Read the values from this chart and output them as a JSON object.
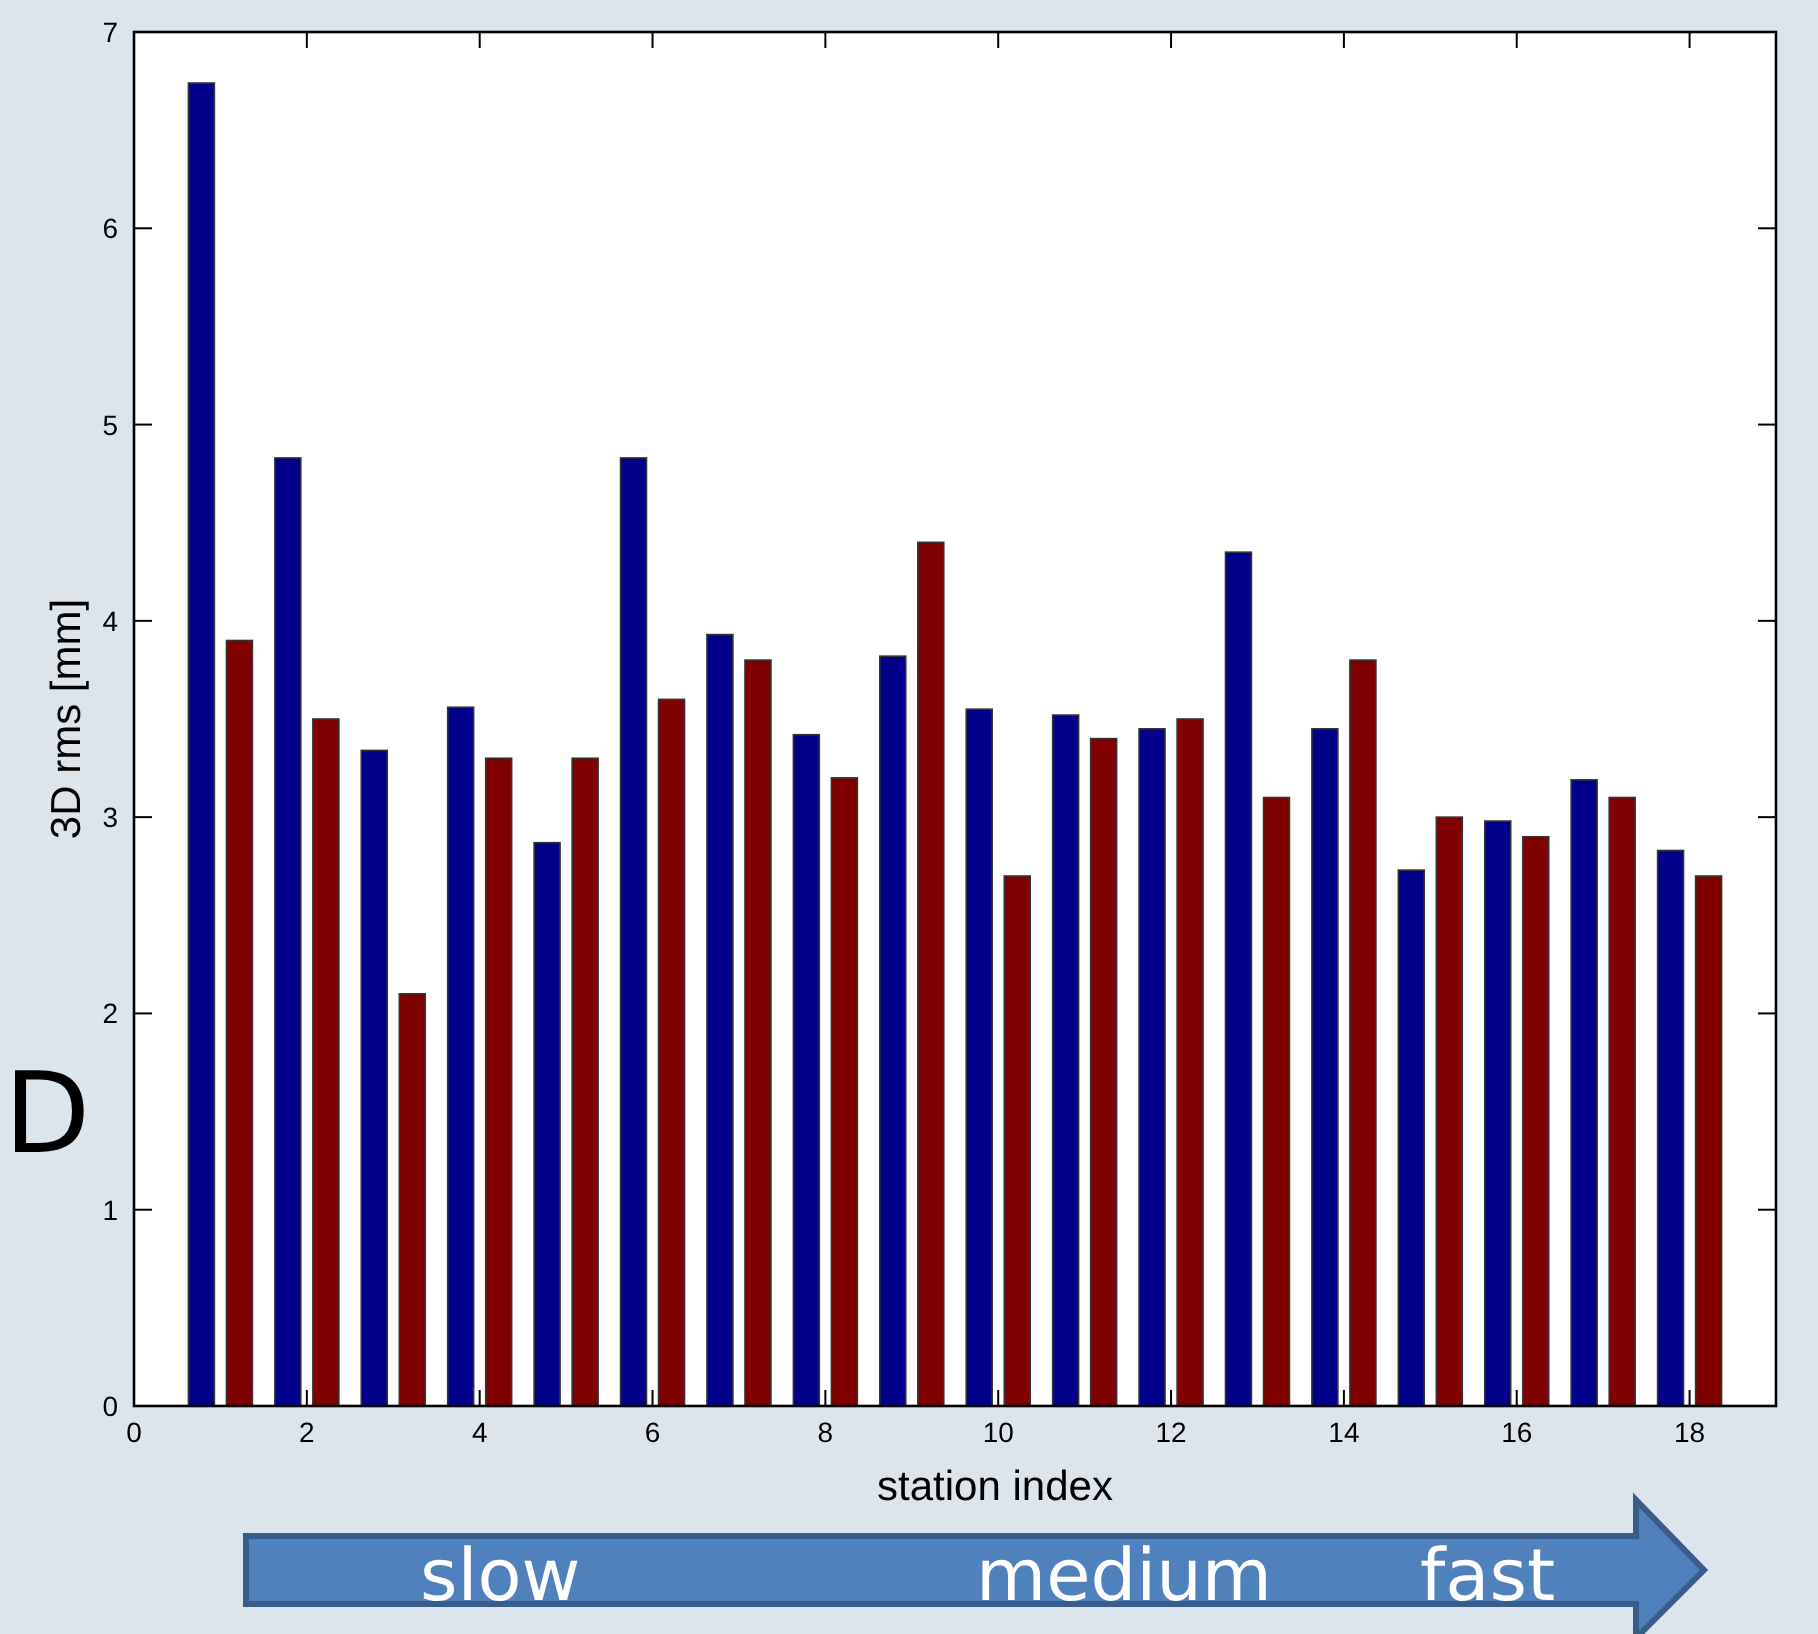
{
  "chart_data": {
    "type": "bar",
    "xlabel": "station index",
    "ylabel": "3D rms [mm]",
    "x": [
      1,
      2,
      3,
      4,
      5,
      6,
      7,
      8,
      9,
      10,
      11,
      12,
      13,
      14,
      15,
      16,
      17,
      18
    ],
    "series": [
      {
        "color": "#00008b",
        "values": [
          6.74,
          4.83,
          3.34,
          3.56,
          2.87,
          4.83,
          3.93,
          3.42,
          3.82,
          3.55,
          3.52,
          3.45,
          4.35,
          3.45,
          2.73,
          2.98,
          3.19,
          2.83
        ]
      },
      {
        "color": "#800000",
        "values": [
          3.9,
          3.5,
          2.1,
          3.3,
          3.3,
          3.6,
          3.8,
          3.2,
          4.4,
          2.7,
          3.4,
          3.5,
          3.1,
          3.8,
          3.0,
          2.9,
          3.1,
          2.7
        ]
      }
    ],
    "xlim": [
      0,
      19
    ],
    "xticks": [
      0,
      2,
      4,
      6,
      8,
      10,
      12,
      14,
      16,
      18
    ],
    "ylim": [
      0,
      7
    ],
    "yticks": [
      0,
      1,
      2,
      3,
      4,
      5,
      6,
      7
    ],
    "annotations": [
      "slow",
      "medium",
      "fast",
      "D"
    ]
  }
}
